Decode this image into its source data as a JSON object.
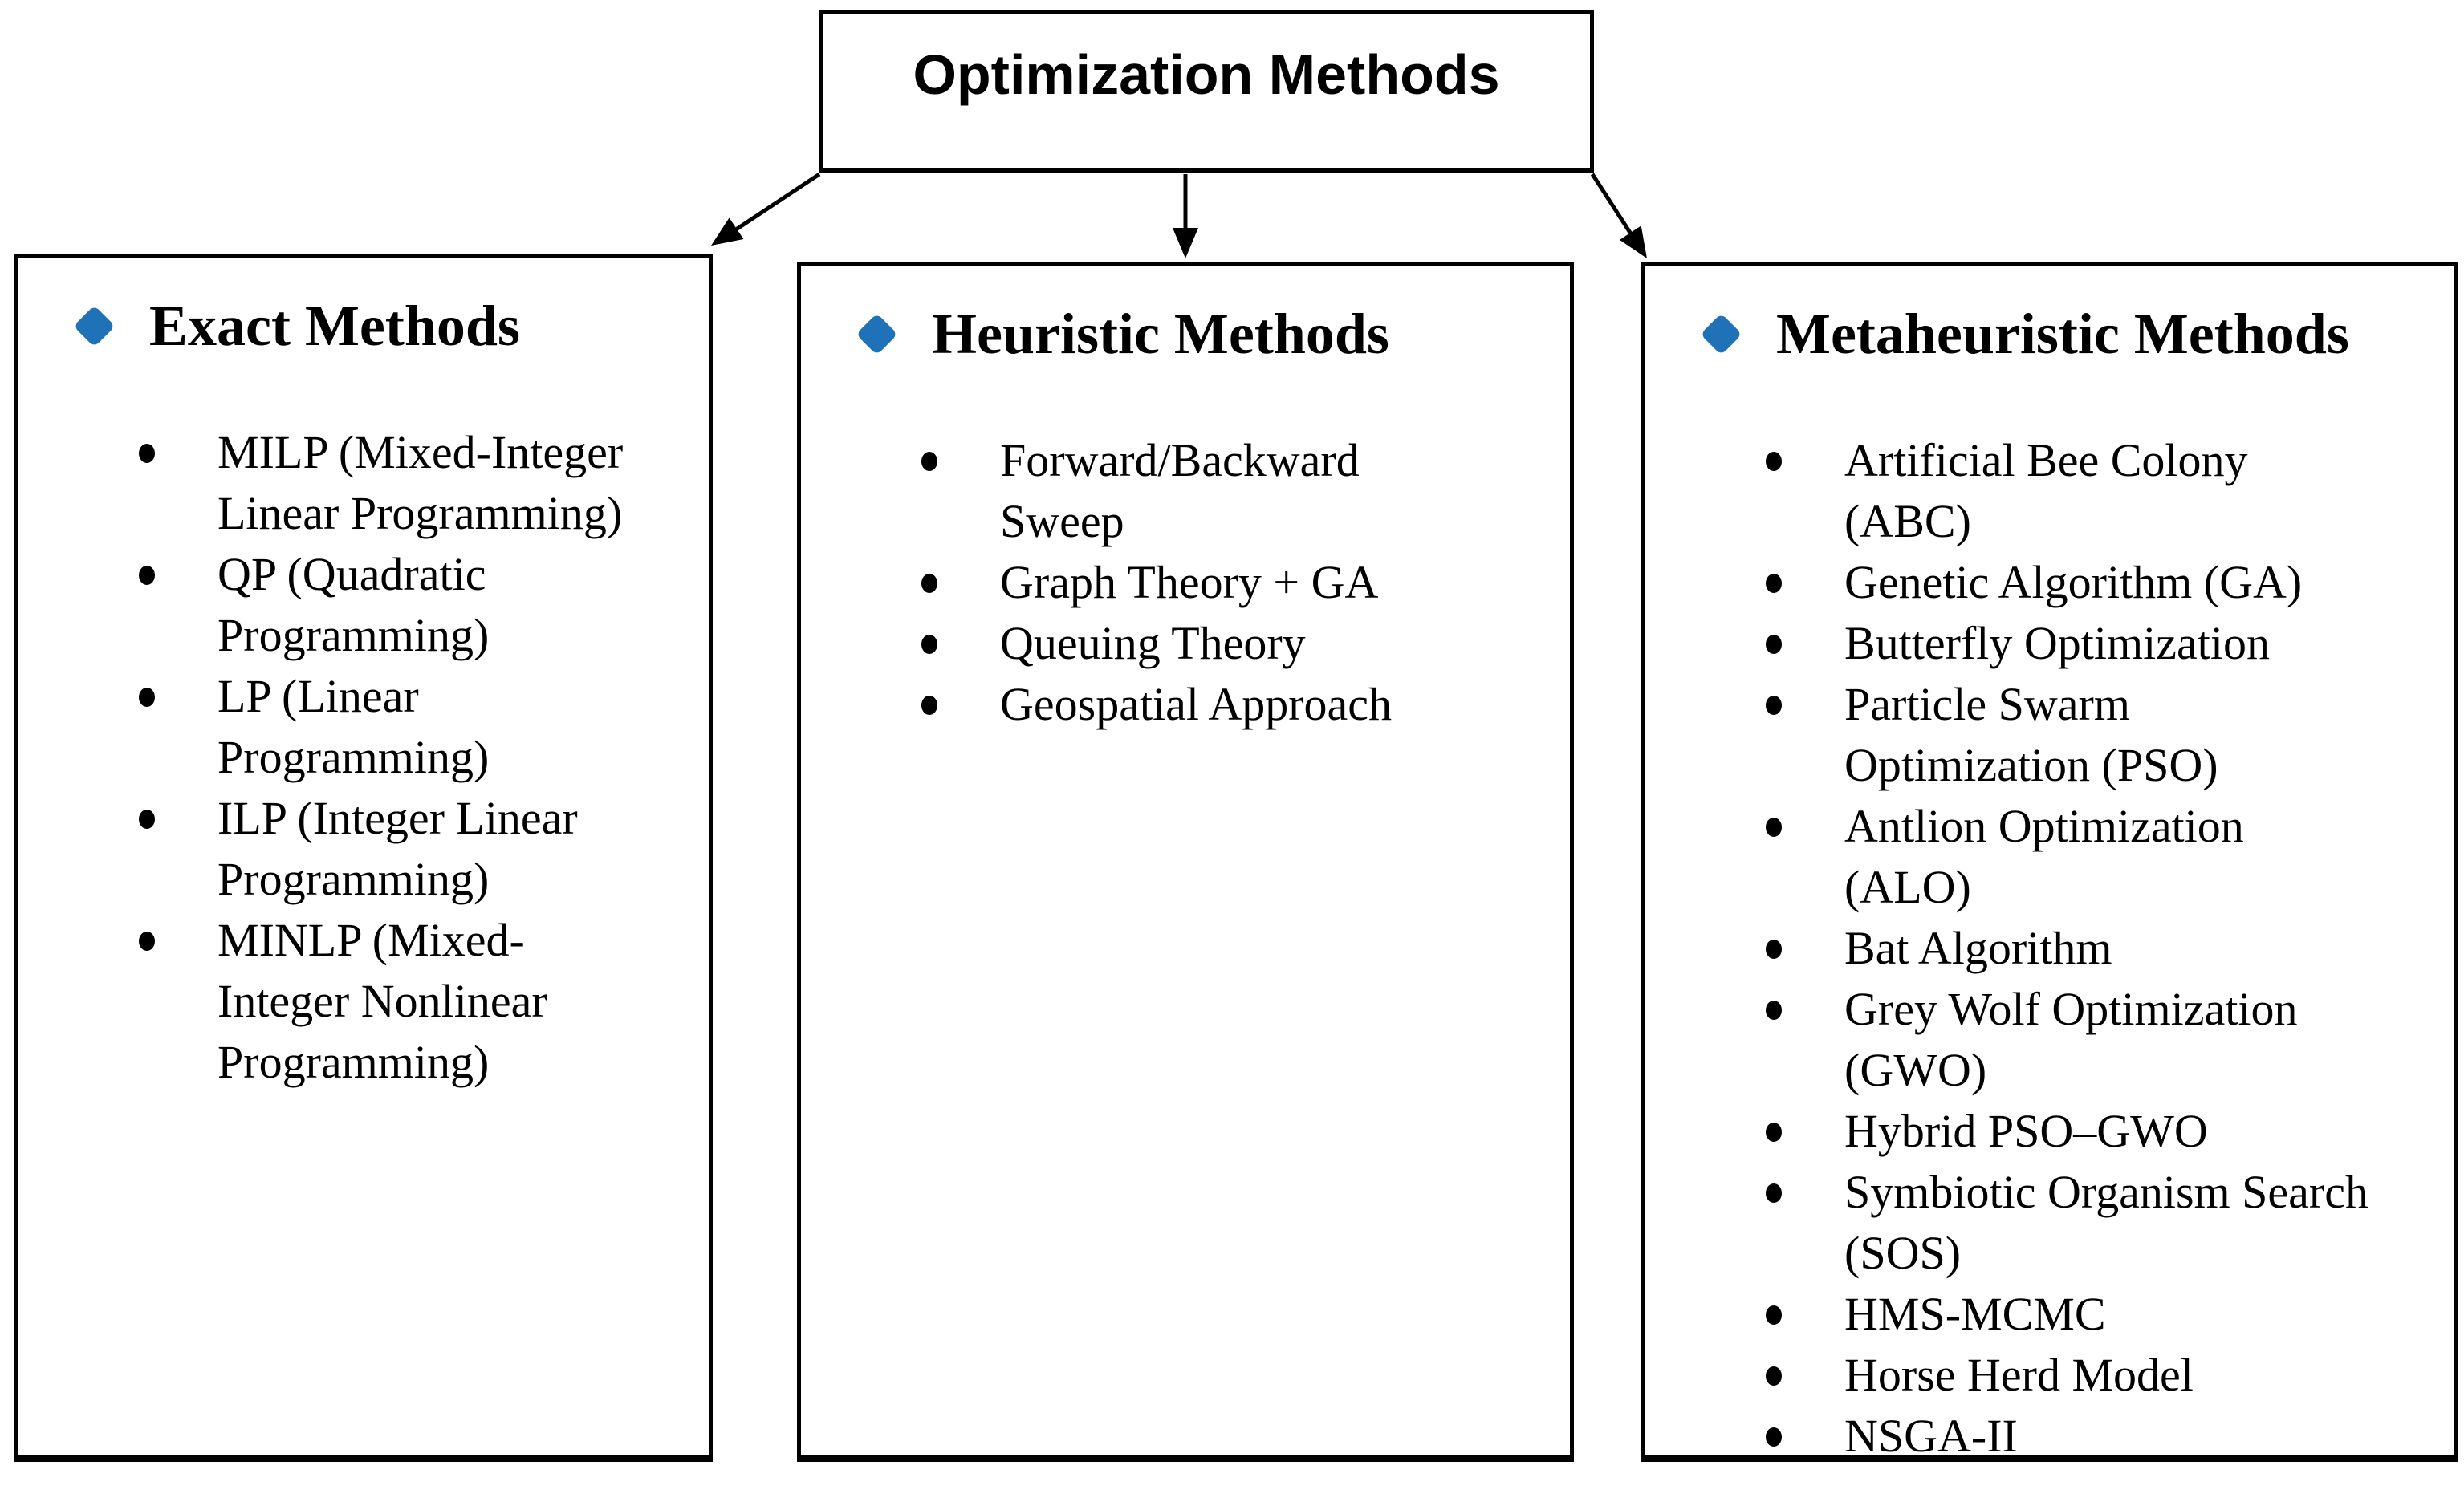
{
  "title": {
    "label": "Optimization Methods"
  },
  "colors": {
    "accent": "#1f72b8",
    "border": "#000000",
    "background": "#ffffff",
    "text": "#000000"
  },
  "icons": {
    "header_bullet": "diamond-icon",
    "item_bullet": "dot-icon",
    "connector": "arrow-down-icon"
  },
  "connectors": [
    {
      "from": "optimization-methods",
      "to": "exact-methods"
    },
    {
      "from": "optimization-methods",
      "to": "heuristic-methods"
    },
    {
      "from": "optimization-methods",
      "to": "metaheuristic-methods"
    }
  ],
  "boxes": [
    {
      "id": "exact",
      "header": "Exact Methods",
      "items": [
        [
          "MILP (Mixed-Integer",
          "Linear Programming)"
        ],
        [
          "QP (Quadratic",
          "Programming)"
        ],
        [
          "LP (Linear",
          "Programming)"
        ],
        [
          "ILP (Integer Linear",
          "Programming)"
        ],
        [
          "MINLP (Mixed-",
          "Integer Nonlinear",
          "Programming)"
        ]
      ]
    },
    {
      "id": "heuristic",
      "header": "Heuristic Methods",
      "items": [
        [
          "Forward/Backward",
          "Sweep"
        ],
        [
          "Graph Theory + GA"
        ],
        [
          "Queuing Theory"
        ],
        [
          "Geospatial Approach"
        ]
      ]
    },
    {
      "id": "metaheuristic",
      "header": "Metaheuristic Methods",
      "items": [
        [
          "Artificial Bee Colony",
          "(ABC)"
        ],
        [
          "Genetic Algorithm (GA)"
        ],
        [
          "Butterfly Optimization"
        ],
        [
          "Particle Swarm",
          "Optimization (PSO)"
        ],
        [
          "Antlion Optimization",
          "(ALO)"
        ],
        [
          "Bat Algorithm"
        ],
        [
          "Grey Wolf Optimization",
          "(GWO)"
        ],
        [
          "Hybrid PSO–GWO"
        ],
        [
          "Symbiotic Organism Search",
          "(SOS)"
        ],
        [
          "HMS-MCMC"
        ],
        [
          "Horse Herd Model"
        ],
        [
          "NSGA-II"
        ]
      ]
    }
  ]
}
